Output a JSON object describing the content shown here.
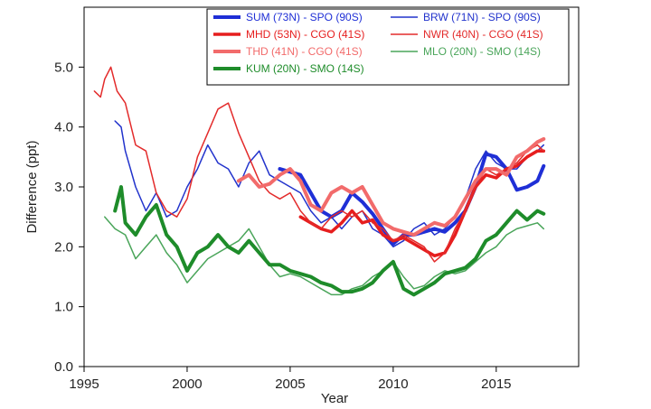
{
  "chart_data": {
    "type": "line",
    "title": "",
    "xlabel": "Year",
    "ylabel": "Difference (ppt)",
    "xlim": [
      1995,
      2019
    ],
    "ylim": [
      0,
      6
    ],
    "x_ticks": [
      1995,
      2000,
      2005,
      2010,
      2015
    ],
    "x_tick_labels": [
      "1995",
      "2000",
      "2005",
      "2010",
      "2015"
    ],
    "y_ticks": [
      0,
      1,
      2,
      3,
      4,
      5
    ],
    "y_tick_labels": [
      "0.0",
      "1.0",
      "2.0",
      "3.0",
      "4.0",
      "5.0"
    ],
    "grid": false,
    "legend_position": "top-right",
    "series": [
      {
        "name": "SUM (73N) - SPO (90S)",
        "color": "#1f2fd6",
        "width": 4,
        "x": [
          2004.5,
          2005,
          2005.5,
          2006,
          2006.5,
          2007,
          2007.5,
          2008,
          2008.5,
          2009,
          2009.5,
          2010,
          2010.5,
          2011,
          2011.5,
          2012,
          2012.5,
          2013,
          2013.5,
          2014,
          2014.5,
          2015,
          2015.5,
          2016,
          2016.5,
          2017,
          2017.3
        ],
        "y": [
          3.3,
          3.25,
          3.2,
          2.9,
          2.6,
          2.5,
          2.6,
          2.9,
          2.75,
          2.55,
          2.3,
          2.05,
          2.2,
          2.2,
          2.25,
          2.3,
          2.25,
          2.4,
          2.6,
          3.0,
          3.55,
          3.5,
          3.3,
          2.95,
          3.0,
          3.1,
          3.35
        ]
      },
      {
        "name": "BRW (71N) - SPO (90S)",
        "color": "#2233cc",
        "width": 1.5,
        "x": [
          1996.5,
          1996.8,
          1997,
          1997.5,
          1998,
          1998.5,
          1999,
          1999.5,
          2000,
          2000.5,
          2001,
          2001.5,
          2002,
          2002.5,
          2003,
          2003.5,
          2004,
          2004.5,
          2005,
          2005.5,
          2006,
          2006.5,
          2007,
          2007.5,
          2008,
          2008.5,
          2009,
          2009.5,
          2010,
          2010.5,
          2011,
          2011.5,
          2012,
          2012.5,
          2013,
          2013.5,
          2014,
          2014.5,
          2015,
          2015.5,
          2016,
          2016.5,
          2017,
          2017.3
        ],
        "y": [
          4.1,
          4.0,
          3.6,
          3.0,
          2.6,
          2.9,
          2.5,
          2.6,
          3.0,
          3.3,
          3.7,
          3.4,
          3.3,
          3.0,
          3.4,
          3.6,
          3.2,
          3.1,
          3.0,
          2.9,
          2.6,
          2.4,
          2.5,
          2.3,
          2.5,
          2.6,
          2.3,
          2.2,
          2.0,
          2.1,
          2.3,
          2.4,
          2.2,
          2.3,
          2.5,
          2.8,
          3.3,
          3.6,
          3.4,
          3.3,
          3.3,
          3.5,
          3.6,
          3.7
        ]
      },
      {
        "name": "MHD (53N) - CGO (41S)",
        "color": "#e61e1e",
        "width": 3.5,
        "x": [
          2005.5,
          2006,
          2006.5,
          2007,
          2007.5,
          2008,
          2008.5,
          2009,
          2009.5,
          2010,
          2010.5,
          2011,
          2011.5,
          2012,
          2012.5,
          2013,
          2013.5,
          2014,
          2014.5,
          2015,
          2015.5,
          2016,
          2016.5,
          2017,
          2017.3
        ],
        "y": [
          2.5,
          2.4,
          2.3,
          2.25,
          2.4,
          2.6,
          2.4,
          2.45,
          2.2,
          2.1,
          2.15,
          2.05,
          1.95,
          1.85,
          1.9,
          2.2,
          2.6,
          3.0,
          3.2,
          3.15,
          3.3,
          3.35,
          3.5,
          3.6,
          3.6
        ]
      },
      {
        "name": "NWR (40N) - CGO (41S)",
        "color": "#e32b2b",
        "width": 1.5,
        "x": [
          1995.5,
          1995.8,
          1996,
          1996.3,
          1996.6,
          1997,
          1997.5,
          1998,
          1998.5,
          1999,
          1999.5,
          2000,
          2000.5,
          2001,
          2001.5,
          2002,
          2002.5,
          2003,
          2003.5,
          2004,
          2004.5,
          2005,
          2005.5,
          2006,
          2006.5,
          2007,
          2007.5,
          2008,
          2008.5,
          2009,
          2009.5,
          2010,
          2010.5,
          2011,
          2011.5,
          2012,
          2012.5,
          2013,
          2013.5,
          2014,
          2014.5,
          2015,
          2015.5,
          2016,
          2016.5,
          2017,
          2017.3
        ],
        "y": [
          4.6,
          4.5,
          4.8,
          5.0,
          4.6,
          4.4,
          3.7,
          3.6,
          2.9,
          2.6,
          2.5,
          2.8,
          3.5,
          3.9,
          4.3,
          4.4,
          3.9,
          3.5,
          3.1,
          2.9,
          2.8,
          2.9,
          2.6,
          2.4,
          2.3,
          2.5,
          2.6,
          2.5,
          2.6,
          2.4,
          2.3,
          2.1,
          2.2,
          2.1,
          2.0,
          1.75,
          1.9,
          2.3,
          2.6,
          3.0,
          3.3,
          3.2,
          3.3,
          3.4,
          3.6,
          3.7,
          3.6
        ]
      },
      {
        "name": "THD (41N) - CGO (41S)",
        "color": "#f26b6b",
        "width": 4,
        "x": [
          2002.5,
          2003,
          2003.5,
          2004,
          2004.5,
          2005,
          2005.5,
          2006,
          2006.5,
          2007,
          2007.5,
          2008,
          2008.5,
          2009,
          2009.5,
          2010,
          2010.5,
          2011,
          2011.5,
          2012,
          2012.5,
          2013,
          2013.5,
          2014,
          2014.5,
          2015,
          2015.5,
          2016,
          2016.5,
          2017,
          2017.3
        ],
        "y": [
          3.1,
          3.2,
          3.0,
          3.05,
          3.2,
          3.3,
          3.1,
          2.7,
          2.6,
          2.9,
          3.0,
          2.9,
          3.0,
          2.7,
          2.4,
          2.3,
          2.25,
          2.2,
          2.3,
          2.4,
          2.35,
          2.5,
          2.8,
          3.1,
          3.3,
          3.3,
          3.2,
          3.5,
          3.6,
          3.75,
          3.8
        ]
      },
      {
        "name": "MLO (20N) - SMO (14S)",
        "color": "#4aa55a",
        "width": 1.5,
        "x": [
          1996,
          1996.5,
          1997,
          1997.5,
          1998,
          1998.5,
          1999,
          1999.5,
          2000,
          2000.5,
          2001,
          2001.5,
          2002,
          2002.5,
          2003,
          2003.5,
          2004,
          2004.5,
          2005,
          2005.5,
          2006,
          2006.5,
          2007,
          2007.5,
          2008,
          2008.5,
          2009,
          2009.5,
          2010,
          2010.5,
          2011,
          2011.5,
          2012,
          2012.5,
          2013,
          2013.5,
          2014,
          2014.5,
          2015,
          2015.5,
          2016,
          2016.5,
          2017,
          2017.3
        ],
        "y": [
          2.5,
          2.3,
          2.2,
          1.8,
          2.0,
          2.2,
          1.9,
          1.7,
          1.4,
          1.6,
          1.8,
          1.9,
          2.0,
          2.1,
          2.3,
          2.0,
          1.7,
          1.5,
          1.55,
          1.5,
          1.4,
          1.3,
          1.2,
          1.2,
          1.3,
          1.35,
          1.5,
          1.6,
          1.75,
          1.5,
          1.3,
          1.35,
          1.5,
          1.6,
          1.55,
          1.6,
          1.75,
          1.9,
          2.0,
          2.2,
          2.3,
          2.35,
          2.4,
          2.3
        ]
      },
      {
        "name": "KUM (20N) - SMO (14S)",
        "color": "#1e8c2a",
        "width": 4,
        "x": [
          1996.5,
          1996.8,
          1997,
          1997.5,
          1998,
          1998.5,
          1999,
          1999.5,
          2000,
          2000.5,
          2001,
          2001.5,
          2002,
          2002.5,
          2003,
          2003.5,
          2004,
          2004.5,
          2005,
          2005.5,
          2006,
          2006.5,
          2007,
          2007.5,
          2008,
          2008.5,
          2009,
          2009.5,
          2010,
          2010.5,
          2011,
          2011.5,
          2012,
          2012.5,
          2013,
          2013.5,
          2014,
          2014.5,
          2015,
          2015.5,
          2016,
          2016.5,
          2017,
          2017.3
        ],
        "y": [
          2.6,
          3.0,
          2.4,
          2.2,
          2.5,
          2.7,
          2.2,
          2.0,
          1.6,
          1.9,
          2.0,
          2.2,
          2.0,
          1.9,
          2.1,
          1.9,
          1.7,
          1.7,
          1.6,
          1.55,
          1.5,
          1.4,
          1.35,
          1.25,
          1.25,
          1.3,
          1.4,
          1.6,
          1.75,
          1.3,
          1.2,
          1.3,
          1.4,
          1.55,
          1.6,
          1.65,
          1.8,
          2.1,
          2.2,
          2.4,
          2.6,
          2.45,
          2.6,
          2.55
        ]
      }
    ]
  }
}
